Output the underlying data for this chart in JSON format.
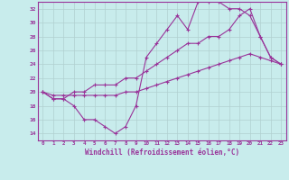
{
  "xlabel": "Windchill (Refroidissement éolien,°C)",
  "bg_color": "#c8ecec",
  "grid_color": "#b0d0d0",
  "line_color": "#993399",
  "x_min": -0.5,
  "x_max": 23.5,
  "y_min": 13,
  "y_max": 33,
  "yticks": [
    14,
    16,
    18,
    20,
    22,
    24,
    26,
    28,
    30,
    32
  ],
  "xticks": [
    0,
    1,
    2,
    3,
    4,
    5,
    6,
    7,
    8,
    9,
    10,
    11,
    12,
    13,
    14,
    15,
    16,
    17,
    18,
    19,
    20,
    21,
    22,
    23
  ],
  "line1_x": [
    0,
    1,
    2,
    3,
    4,
    5,
    6,
    7,
    8,
    9,
    10,
    11,
    12,
    13,
    14,
    15,
    16,
    17,
    18,
    19,
    20,
    21,
    22,
    23
  ],
  "line1_y": [
    20,
    19,
    19,
    18,
    16,
    16,
    15,
    14,
    15,
    18,
    25,
    27,
    29,
    31,
    29,
    33,
    33,
    33,
    32,
    32,
    31,
    28,
    25,
    24
  ],
  "line2_x": [
    0,
    1,
    2,
    3,
    4,
    5,
    6,
    7,
    8,
    9,
    10,
    11,
    12,
    13,
    14,
    15,
    16,
    17,
    18,
    19,
    20,
    21,
    22,
    23
  ],
  "line2_y": [
    20,
    19,
    19,
    20,
    20,
    21,
    21,
    21,
    22,
    22,
    23,
    24,
    25,
    26,
    27,
    27,
    28,
    28,
    29,
    31,
    32,
    28,
    25,
    24
  ],
  "line3_x": [
    0,
    1,
    2,
    3,
    4,
    5,
    6,
    7,
    8,
    9,
    10,
    11,
    12,
    13,
    14,
    15,
    16,
    17,
    18,
    19,
    20,
    21,
    22,
    23
  ],
  "line3_y": [
    20,
    19.5,
    19.5,
    19.5,
    19.5,
    19.5,
    19.5,
    19.5,
    20,
    20,
    20.5,
    21,
    21.5,
    22,
    22.5,
    23,
    23.5,
    24,
    24.5,
    25,
    25.5,
    25,
    24.5,
    24
  ]
}
